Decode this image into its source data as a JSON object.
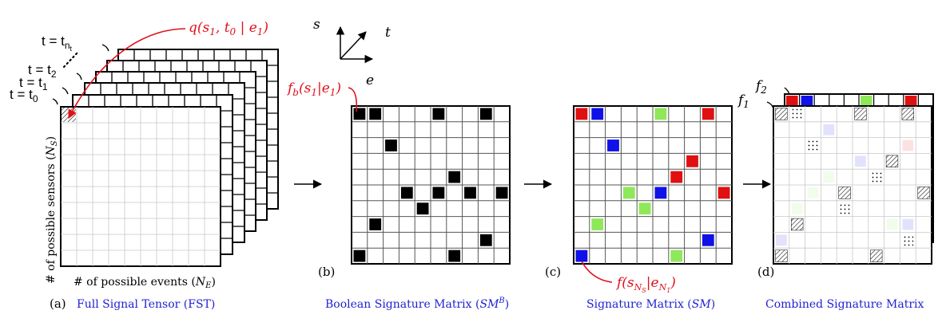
{
  "colors": {
    "accent_red": "#e0101a",
    "caption_blue": "#1f1fd0",
    "cell_black": "#000000",
    "cell_red": "#e01010",
    "cell_blue": "#1010e8",
    "cell_green": "#8ee85a"
  },
  "panel_a": {
    "caption_letter": "(a)",
    "caption_text": "Full Signal Tensor (FST)",
    "time_labels": [
      "t = t_nt",
      "t = t_2",
      "t = t_1",
      "t = t_0"
    ],
    "callout": "q(s1, t0 | e1)",
    "y_axis_label": "# of possible sensors (N_S)",
    "x_axis_label": "# of possible events (N_E)"
  },
  "axes_legend": {
    "s": "s",
    "t": "t",
    "e": "e"
  },
  "panel_b": {
    "caption_letter": "(b)",
    "caption_text": "Boolean Signature Matrix (SM^B)",
    "callout": "f_b(s1|e1)"
  },
  "panel_c": {
    "caption_letter": "(c)",
    "caption_text": "Signature Matrix (SM)",
    "callout": "f(s_NS|e_N1)"
  },
  "panel_d": {
    "caption_letter": "(d)",
    "caption_text": "Combined Signature Matrix",
    "f1": "f1",
    "f2": "f2"
  }
}
